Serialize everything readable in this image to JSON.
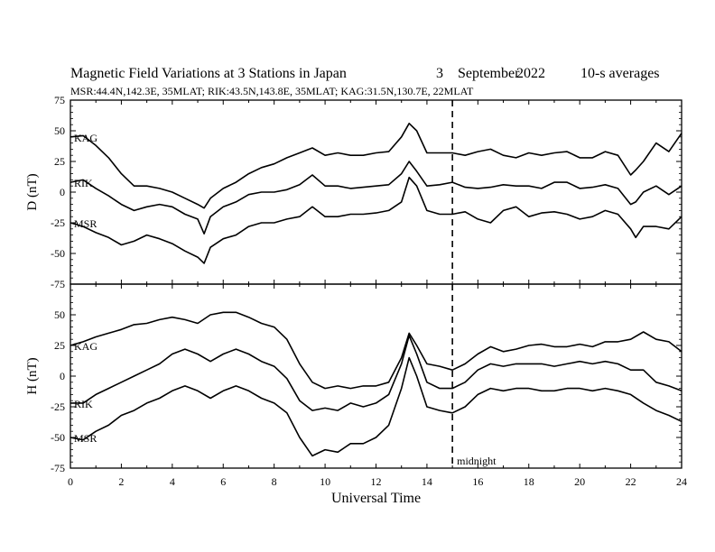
{
  "header": {
    "title": "Magnetic Field Variations at 3 Stations in Japan",
    "date_day": "3",
    "date_month": "September",
    "date_year": "2022",
    "averaging": "10-s averages",
    "stations_line": "MSR:44.4N,142.3E, 35MLAT;  RIK:43.5N,143.8E, 35MLAT;  KAG:31.5N,130.7E, 22MLAT"
  },
  "chart_data": [
    {
      "type": "line",
      "panel": "D",
      "ylabel": "D (nT)",
      "xlabel": "",
      "xlim": [
        0,
        24
      ],
      "ylim": [
        -75,
        75
      ],
      "yticks": [
        -75,
        -50,
        -25,
        0,
        25,
        50,
        75
      ],
      "grid": false,
      "series": [
        {
          "name": "KAG",
          "x": [
            0,
            0.5,
            1,
            1.5,
            2,
            2.5,
            3,
            3.5,
            4,
            4.5,
            5,
            5.25,
            5.5,
            6,
            6.5,
            7,
            7.5,
            8,
            8.5,
            9,
            9.5,
            10,
            10.5,
            11,
            11.5,
            12,
            12.5,
            13,
            13.3,
            13.6,
            14,
            14.5,
            15,
            15.5,
            16,
            16.5,
            17,
            17.5,
            18,
            18.5,
            19,
            19.5,
            20,
            20.5,
            21,
            21.5,
            22,
            22.2,
            22.5,
            23,
            23.5,
            24
          ],
          "y": [
            45,
            46,
            38,
            28,
            15,
            5,
            5,
            3,
            0,
            -5,
            -10,
            -13,
            -5,
            3,
            8,
            15,
            20,
            23,
            28,
            32,
            36,
            30,
            32,
            30,
            30,
            32,
            33,
            45,
            56,
            50,
            32,
            32,
            32,
            30,
            33,
            35,
            30,
            28,
            32,
            30,
            32,
            33,
            28,
            28,
            33,
            30,
            14,
            18,
            25,
            40,
            33,
            48
          ]
        },
        {
          "name": "RIK",
          "x": [
            0,
            0.5,
            1,
            1.5,
            2,
            2.5,
            3,
            3.5,
            4,
            4.5,
            5,
            5.25,
            5.5,
            6,
            6.5,
            7,
            7.5,
            8,
            8.5,
            9,
            9.5,
            10,
            10.5,
            11,
            11.5,
            12,
            12.5,
            13,
            13.3,
            13.6,
            14,
            14.5,
            15,
            15.5,
            16,
            16.5,
            17,
            17.5,
            18,
            18.5,
            19,
            19.5,
            20,
            20.5,
            21,
            21.5,
            22,
            22.2,
            22.5,
            23,
            23.5,
            24
          ],
          "y": [
            8,
            10,
            3,
            -3,
            -10,
            -15,
            -12,
            -10,
            -12,
            -18,
            -22,
            -34,
            -20,
            -12,
            -8,
            -2,
            0,
            0,
            2,
            6,
            14,
            5,
            5,
            3,
            4,
            5,
            6,
            15,
            25,
            17,
            5,
            6,
            8,
            4,
            3,
            4,
            6,
            5,
            5,
            3,
            8,
            8,
            3,
            4,
            6,
            3,
            -10,
            -8,
            0,
            5,
            -2,
            5
          ]
        },
        {
          "name": "MSR",
          "x": [
            0,
            0.5,
            1,
            1.5,
            2,
            2.5,
            3,
            3.5,
            4,
            4.5,
            5,
            5.25,
            5.5,
            6,
            6.5,
            7,
            7.5,
            8,
            8.5,
            9,
            9.5,
            10,
            10.5,
            11,
            11.5,
            12,
            12.5,
            13,
            13.3,
            13.6,
            14,
            14.5,
            15,
            15.5,
            16,
            16.5,
            17,
            17.5,
            18,
            18.5,
            19,
            19.5,
            20,
            20.5,
            21,
            21.5,
            22,
            22.2,
            22.5,
            23,
            23.5,
            24
          ],
          "y": [
            -25,
            -28,
            -33,
            -37,
            -43,
            -40,
            -35,
            -38,
            -42,
            -48,
            -53,
            -58,
            -45,
            -38,
            -35,
            -28,
            -25,
            -25,
            -22,
            -20,
            -12,
            -20,
            -20,
            -18,
            -18,
            -17,
            -15,
            -8,
            12,
            5,
            -15,
            -18,
            -18,
            -16,
            -22,
            -25,
            -15,
            -12,
            -20,
            -17,
            -16,
            -18,
            -22,
            -20,
            -15,
            -18,
            -30,
            -37,
            -28,
            -28,
            -30,
            -20
          ]
        }
      ]
    },
    {
      "type": "line",
      "panel": "H",
      "ylabel": "H (nT)",
      "xlabel": "Universal Time",
      "xlim": [
        0,
        24
      ],
      "xticks": [
        0,
        2,
        4,
        6,
        8,
        10,
        12,
        14,
        16,
        18,
        20,
        22,
        24
      ],
      "ylim": [
        -75,
        75
      ],
      "yticks": [
        -75,
        -50,
        -25,
        0,
        25,
        50,
        75
      ],
      "grid": false,
      "series": [
        {
          "name": "KAG",
          "x": [
            0,
            0.5,
            1,
            1.5,
            2,
            2.5,
            3,
            3.5,
            4,
            4.5,
            5,
            5.5,
            6,
            6.5,
            7,
            7.5,
            8,
            8.5,
            9,
            9.5,
            10,
            10.5,
            11,
            11.5,
            12,
            12.5,
            13,
            13.3,
            13.6,
            14,
            14.5,
            15,
            15.5,
            16,
            16.5,
            17,
            17.5,
            18,
            18.5,
            19,
            19.5,
            20,
            20.5,
            21,
            21.5,
            22,
            22.5,
            23,
            23.5,
            24
          ],
          "y": [
            25,
            28,
            32,
            35,
            38,
            42,
            43,
            46,
            48,
            46,
            43,
            50,
            52,
            52,
            48,
            43,
            40,
            30,
            10,
            -5,
            -10,
            -8,
            -10,
            -8,
            -8,
            -5,
            15,
            35,
            25,
            10,
            8,
            5,
            10,
            18,
            24,
            20,
            22,
            25,
            26,
            24,
            24,
            26,
            24,
            28,
            28,
            30,
            36,
            30,
            28,
            20
          ]
        },
        {
          "name": "RIK",
          "x": [
            0,
            0.5,
            1,
            1.5,
            2,
            2.5,
            3,
            3.5,
            4,
            4.5,
            5,
            5.5,
            6,
            6.5,
            7,
            7.5,
            8,
            8.5,
            9,
            9.5,
            10,
            10.5,
            11,
            11.5,
            12,
            12.5,
            13,
            13.3,
            13.6,
            14,
            14.5,
            15,
            15.5,
            16,
            16.5,
            17,
            17.5,
            18,
            18.5,
            19,
            19.5,
            20,
            20.5,
            21,
            21.5,
            22,
            22.5,
            23,
            23.5,
            24
          ],
          "y": [
            -22,
            -22,
            -15,
            -10,
            -5,
            0,
            5,
            10,
            18,
            22,
            18,
            12,
            18,
            22,
            18,
            12,
            8,
            -2,
            -20,
            -28,
            -26,
            -28,
            -22,
            -25,
            -22,
            -15,
            10,
            33,
            18,
            -5,
            -10,
            -10,
            -5,
            5,
            10,
            8,
            10,
            10,
            10,
            8,
            10,
            12,
            10,
            12,
            10,
            5,
            5,
            -5,
            -8,
            -12
          ]
        },
        {
          "name": "MSR",
          "x": [
            0,
            0.5,
            1,
            1.5,
            2,
            2.5,
            3,
            3.5,
            4,
            4.5,
            5,
            5.5,
            6,
            6.5,
            7,
            7.5,
            8,
            8.5,
            9,
            9.5,
            10,
            10.5,
            11,
            11.5,
            12,
            12.5,
            13,
            13.3,
            13.6,
            14,
            14.5,
            15,
            15.5,
            16,
            16.5,
            17,
            17.5,
            18,
            18.5,
            19,
            19.5,
            20,
            20.5,
            21,
            21.5,
            22,
            22.5,
            23,
            23.5,
            24
          ],
          "y": [
            -50,
            -52,
            -45,
            -40,
            -32,
            -28,
            -22,
            -18,
            -12,
            -8,
            -12,
            -18,
            -12,
            -8,
            -12,
            -18,
            -22,
            -30,
            -50,
            -65,
            -60,
            -62,
            -55,
            -55,
            -50,
            -40,
            -10,
            15,
            0,
            -25,
            -28,
            -30,
            -25,
            -15,
            -10,
            -12,
            -10,
            -10,
            -12,
            -12,
            -10,
            -10,
            -12,
            -10,
            -12,
            -15,
            -22,
            -28,
            -32,
            -37
          ]
        }
      ]
    }
  ],
  "annotations": {
    "midnight_label": "midnight",
    "midnight_x": 15
  }
}
